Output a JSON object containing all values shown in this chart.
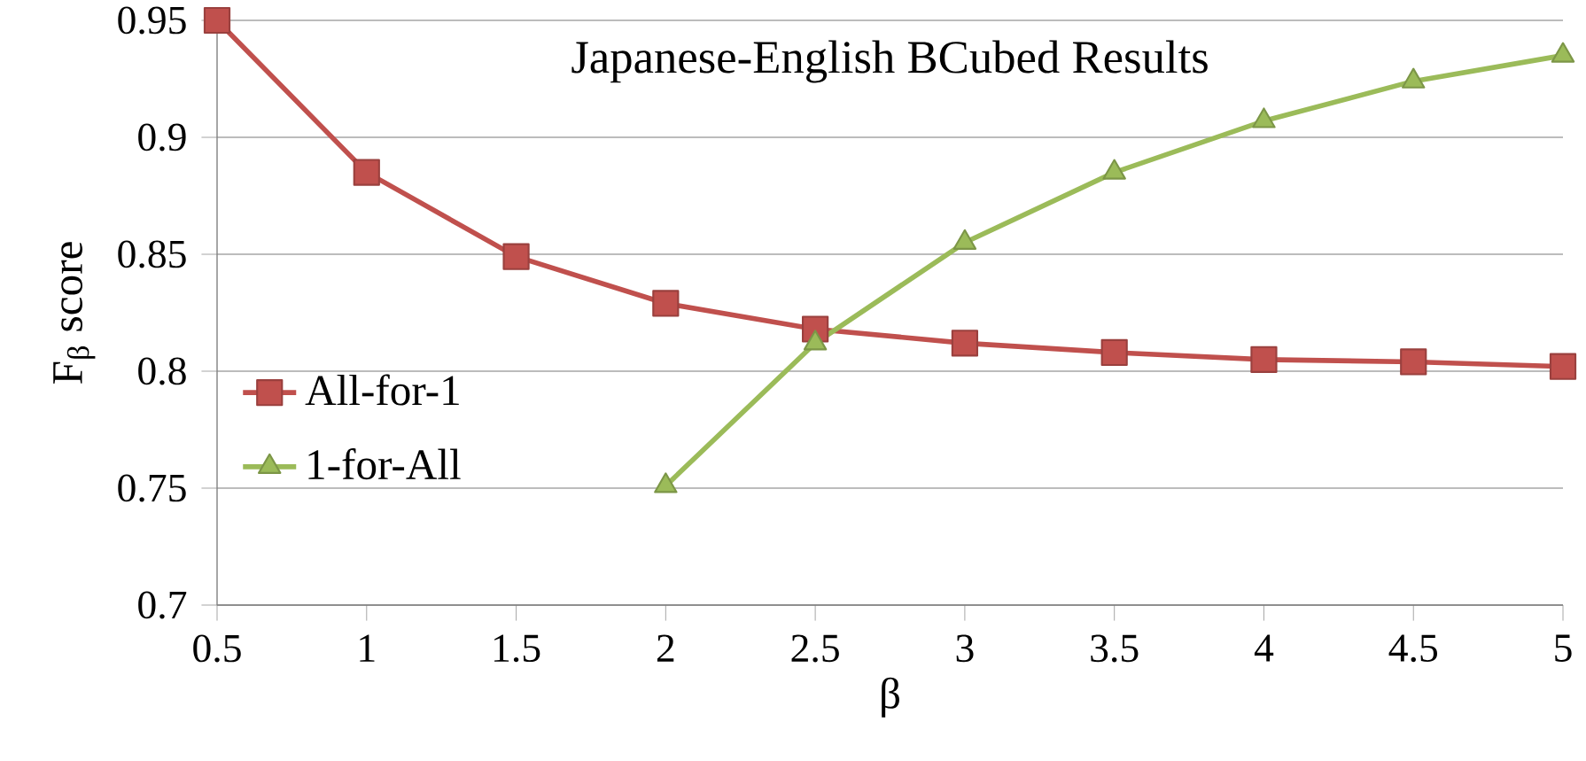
{
  "chart_data": {
    "type": "line",
    "title": "Japanese-English BCubed Results",
    "xlabel": "β",
    "ylabel": "F$_{β}$ score",
    "x": [
      0.5,
      1,
      1.5,
      2,
      2.5,
      3,
      3.5,
      4,
      4.5,
      5
    ],
    "series": [
      {
        "name": "All-for-1",
        "color": "#c0504d",
        "marker": "square",
        "values": [
          0.95,
          0.885,
          0.849,
          0.829,
          0.818,
          0.812,
          0.808,
          0.805,
          0.804,
          0.802
        ]
      },
      {
        "name": "1-for-All",
        "color": "#9bbb59",
        "marker": "triangle",
        "values": [
          null,
          null,
          null,
          0.751,
          0.812,
          0.855,
          0.885,
          0.907,
          0.924,
          0.935
        ]
      }
    ],
    "xlim": [
      0.5,
      5
    ],
    "xticks": [
      0.5,
      1,
      1.5,
      2,
      2.5,
      3,
      3.5,
      4,
      4.5,
      5
    ],
    "ylim": [
      0.7,
      0.95
    ],
    "yticks": [
      0.7,
      0.75,
      0.8,
      0.85,
      0.9,
      0.95
    ],
    "grid": "y",
    "legend": "left"
  }
}
